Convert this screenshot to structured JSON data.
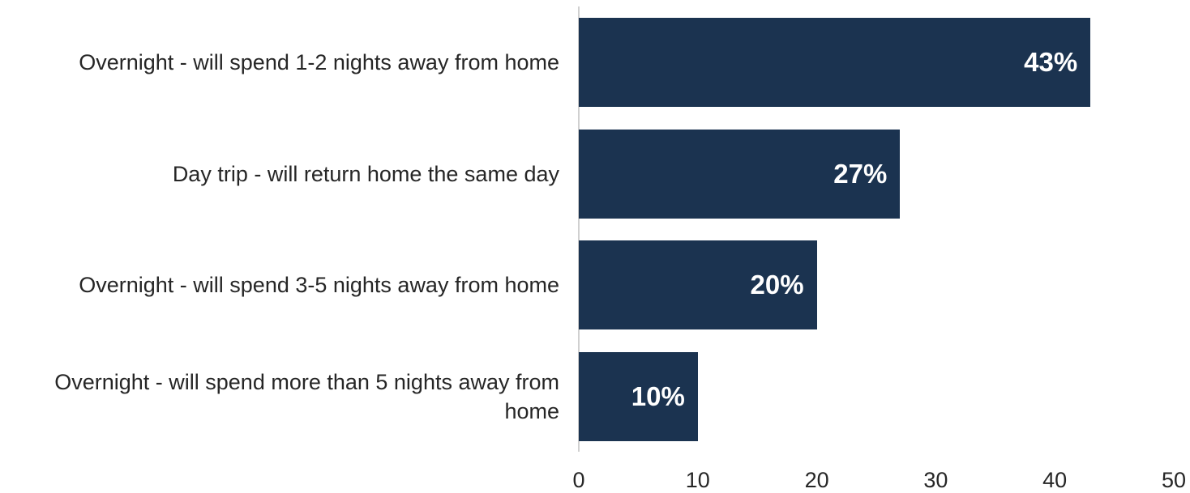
{
  "chart_data": {
    "type": "bar",
    "orientation": "horizontal",
    "categories": [
      "Overnight - will spend 1-2 nights away from home",
      "Day trip - will return home the same day",
      "Overnight - will spend 3-5 nights away from home",
      "Overnight - will spend more than 5 nights away from home"
    ],
    "values": [
      43,
      27,
      20,
      10
    ],
    "data_labels": [
      "43%",
      "27%",
      "20%",
      "10%"
    ],
    "xlim": [
      0,
      50
    ],
    "xticks": [
      "0",
      "10",
      "20",
      "30",
      "40",
      "50"
    ],
    "title": "",
    "xlabel": "",
    "ylabel": "",
    "grid": false,
    "legend": "none",
    "bar_color": "#1b3350"
  }
}
